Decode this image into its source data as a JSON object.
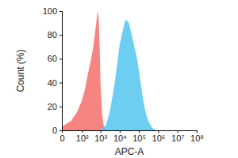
{
  "chart_data": {
    "type": "area",
    "xlabel": "APC-A",
    "ylabel": "Count (%)",
    "log": "x",
    "xlim": [
      0,
      100000000
    ],
    "xticks": [
      0,
      {
        "value": 100,
        "label": "10²"
      },
      {
        "value": 1000,
        "label": "10³"
      },
      {
        "value": 10000,
        "label": "10⁴"
      },
      {
        "value": 100000,
        "label": "10⁵"
      },
      {
        "value": 1000000,
        "label": "10⁶"
      },
      {
        "value": 10000000,
        "label": "10⁷"
      },
      {
        "value": 100000000,
        "label": "10⁸"
      }
    ],
    "ylim": [
      0,
      100
    ],
    "yticks": [
      0,
      20,
      40,
      60,
      80,
      100
    ],
    "series": [
      {
        "color": "#f4706c",
        "x": [
          0,
          20,
          50,
          100,
          150,
          200,
          300,
          400,
          500,
          600,
          700,
          800,
          900,
          1000,
          1200,
          1500,
          2000
        ],
        "values": [
          3,
          8,
          15,
          25,
          35,
          45,
          58,
          68,
          80,
          90,
          100,
          95,
          70,
          40,
          15,
          3,
          0
        ]
      },
      {
        "color": "#55c6ee",
        "x": [
          1000,
          2000,
          3000,
          5000,
          8000,
          10000,
          15000,
          20000,
          30000,
          50000,
          80000,
          100000,
          150000,
          200000,
          300000,
          500000,
          800000
        ],
        "values": [
          0,
          5,
          15,
          35,
          60,
          72,
          85,
          93,
          90,
          75,
          60,
          50,
          30,
          18,
          8,
          2,
          0
        ]
      }
    ]
  }
}
